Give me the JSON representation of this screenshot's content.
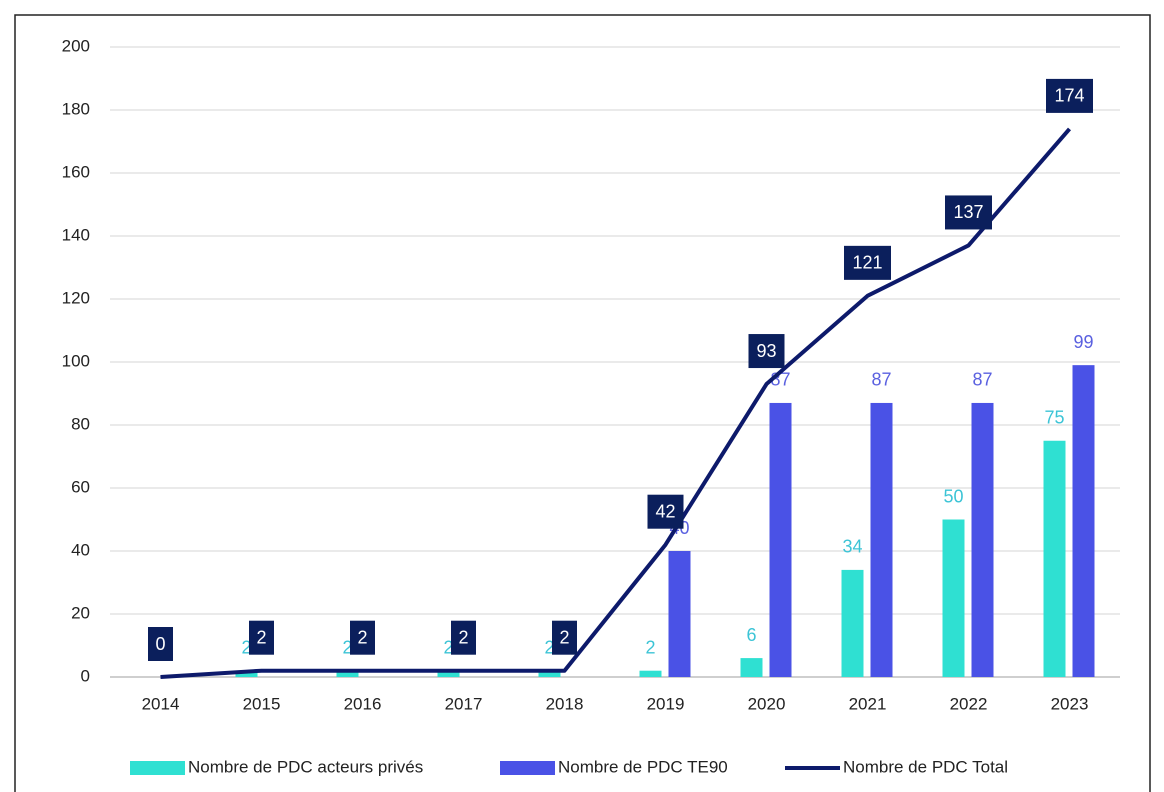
{
  "chart_data": {
    "type": "bar_line",
    "categories": [
      "2014",
      "2015",
      "2016",
      "2017",
      "2018",
      "2019",
      "2020",
      "2021",
      "2022",
      "2023"
    ],
    "series": [
      {
        "name": "Nombre de PDC acteurs privés",
        "type": "bar",
        "color": "#2fe0d2",
        "label_color": "#3cc4d6",
        "values": [
          null,
          2,
          2,
          2,
          2,
          2,
          6,
          34,
          50,
          75
        ]
      },
      {
        "name": "Nombre de PDC TE90",
        "type": "bar",
        "color": "#4a52e6",
        "label_color": "#5a60e0",
        "values": [
          null,
          null,
          null,
          null,
          null,
          40,
          87,
          87,
          87,
          99
        ]
      },
      {
        "name": "Nombre de PDC Total",
        "type": "line",
        "color": "#0d1a6b",
        "label_color": "#0b1f5c",
        "values": [
          0,
          2,
          2,
          2,
          2,
          42,
          93,
          121,
          137,
          174
        ]
      }
    ],
    "ylim": [
      0,
      200
    ],
    "yticks": [
      0,
      20,
      40,
      60,
      80,
      100,
      120,
      140,
      160,
      180,
      200
    ],
    "grid": true,
    "legend": "bottom"
  }
}
